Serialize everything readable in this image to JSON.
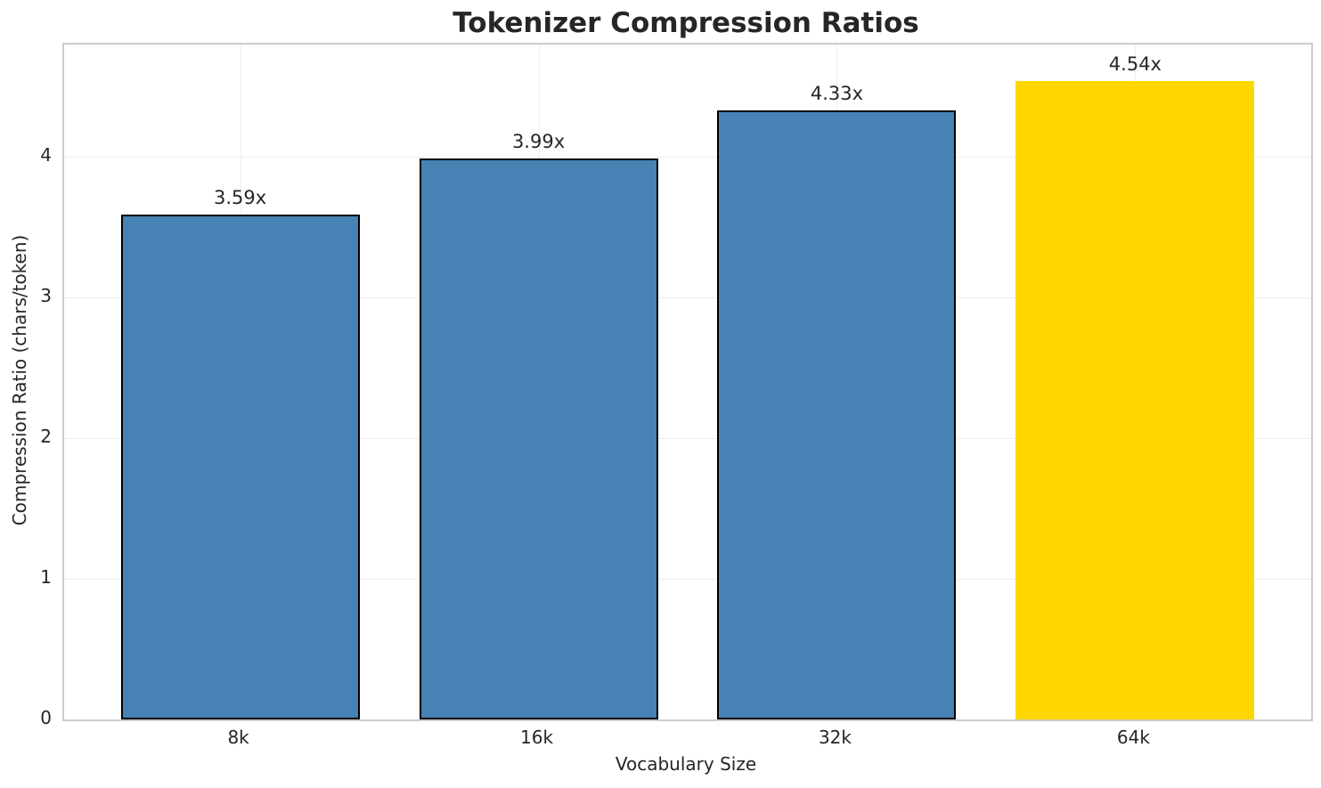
{
  "chart_data": {
    "type": "bar",
    "title": "Tokenizer Compression Ratios",
    "xlabel": "Vocabulary Size",
    "ylabel": "Compression Ratio (chars/token)",
    "categories": [
      "8k",
      "16k",
      "32k",
      "64k"
    ],
    "values": [
      3.59,
      3.99,
      4.33,
      4.54
    ],
    "bar_labels": [
      "3.59x",
      "3.99x",
      "4.33x",
      "4.54x"
    ],
    "bar_colors": [
      "#4682B4",
      "#4682B4",
      "#4682B4",
      "#FFD700"
    ],
    "bar_edge_colors": [
      "#000000",
      "#000000",
      "#000000",
      "#FFD700"
    ],
    "ylim": [
      0,
      4.8
    ],
    "yticks": [
      0,
      1,
      2,
      3,
      4
    ],
    "xlim": [
      -0.59,
      3.59
    ],
    "bar_width": 0.8,
    "grid": "on",
    "legend": "none",
    "colors": {
      "bar_blue": "#4682B4",
      "bar_gold": "#FFD700",
      "bar_edge": "#000000",
      "grid": "#ededed",
      "spine": "#cccccc",
      "text": "#262626"
    }
  }
}
